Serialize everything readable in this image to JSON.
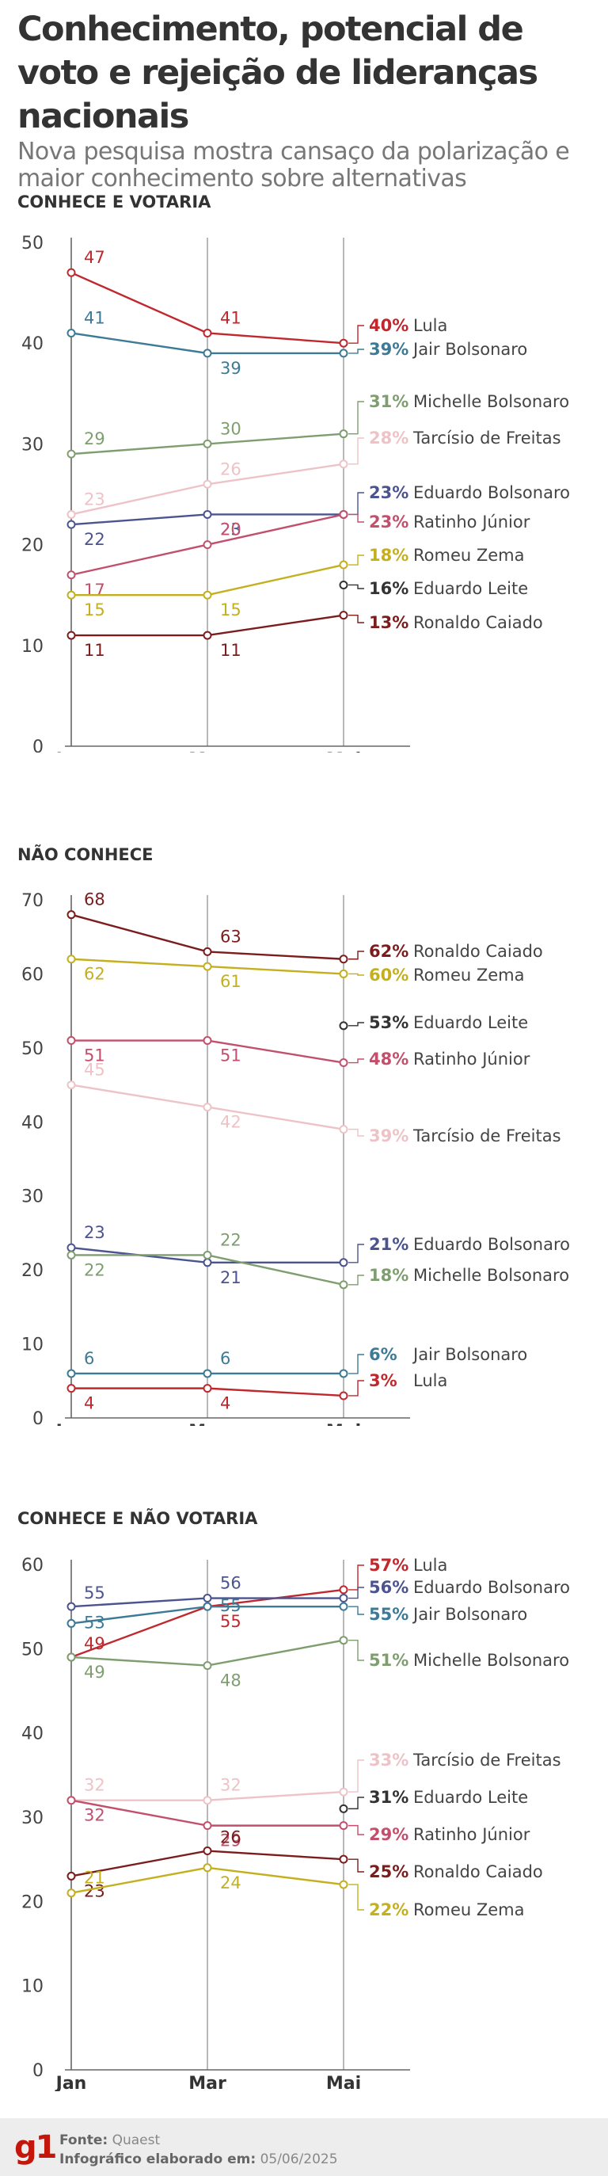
{
  "header": {
    "title": "Conhecimento, potencial de voto e rejeição de lideranças nacionais",
    "subtitle": "Nova pesquisa mostra cansaço da polarização e maior conhecimento sobre alternativas"
  },
  "footer": {
    "logo": "g1",
    "source_label": "Fonte:",
    "source_value": "Quaest",
    "date_label": "Infográfico elaborado em:",
    "date_value": "05/06/2025"
  },
  "colors": {
    "Lula": "#c0282d",
    "Jair Bolsonaro": "#3d7a96",
    "Michelle Bolsonaro": "#7f9e6f",
    "Tarcísio de Freitas": "#eec3c7",
    "Eduardo Bolsonaro": "#4c5490",
    "Ratinho Júnior": "#c24f6c",
    "Romeu Zema": "#c4b01e",
    "Eduardo Leite": "#333333",
    "Ronaldo Caiado": "#7c1d1d"
  },
  "chart_data": [
    {
      "type": "line",
      "title": "CONHECE E VOTARIA",
      "x": [
        "Jan",
        "Mar",
        "Mai"
      ],
      "ylim": [
        0,
        50
      ],
      "yticks": [
        0,
        10,
        20,
        30,
        40,
        50
      ],
      "series": [
        {
          "name": "Lula",
          "values": [
            47,
            41,
            40
          ],
          "end_label": "40%"
        },
        {
          "name": "Jair Bolsonaro",
          "values": [
            41,
            39,
            39
          ],
          "end_label": "39%"
        },
        {
          "name": "Michelle Bolsonaro",
          "values": [
            29,
            30,
            31
          ],
          "end_label": "31%"
        },
        {
          "name": "Tarcísio de Freitas",
          "values": [
            23,
            26,
            28
          ],
          "end_label": "28%"
        },
        {
          "name": "Eduardo Bolsonaro",
          "values": [
            22,
            23,
            23
          ],
          "end_label": "23%"
        },
        {
          "name": "Ratinho Júnior",
          "values": [
            17,
            20,
            23
          ],
          "end_label": "23%"
        },
        {
          "name": "Romeu Zema",
          "values": [
            15,
            15,
            18
          ],
          "end_label": "18%"
        },
        {
          "name": "Eduardo Leite",
          "values": [
            null,
            null,
            16
          ],
          "end_label": "16%"
        },
        {
          "name": "Ronaldo Caiado",
          "values": [
            11,
            11,
            13
          ],
          "end_label": "13%"
        }
      ]
    },
    {
      "type": "line",
      "title": "NÃO CONHECE",
      "x": [
        "Jan",
        "Mar",
        "Mai"
      ],
      "ylim": [
        0,
        70
      ],
      "yticks": [
        0,
        10,
        20,
        30,
        40,
        50,
        60,
        70
      ],
      "series": [
        {
          "name": "Ronaldo Caiado",
          "values": [
            68,
            63,
            62
          ],
          "end_label": "62%"
        },
        {
          "name": "Romeu Zema",
          "values": [
            62,
            61,
            60
          ],
          "end_label": "60%"
        },
        {
          "name": "Eduardo Leite",
          "values": [
            null,
            null,
            53
          ],
          "end_label": "53%"
        },
        {
          "name": "Ratinho Júnior",
          "values": [
            51,
            51,
            48
          ],
          "end_label": "48%"
        },
        {
          "name": "Tarcísio de Freitas",
          "values": [
            45,
            42,
            39
          ],
          "end_label": "39%"
        },
        {
          "name": "Eduardo Bolsonaro",
          "values": [
            23,
            21,
            21
          ],
          "end_label": "21%"
        },
        {
          "name": "Michelle Bolsonaro",
          "values": [
            22,
            22,
            18
          ],
          "end_label": "18%"
        },
        {
          "name": "Jair Bolsonaro",
          "values": [
            6,
            6,
            6
          ],
          "end_label": "6%"
        },
        {
          "name": "Lula",
          "values": [
            4,
            4,
            3
          ],
          "end_label": "3%"
        }
      ]
    },
    {
      "type": "line",
      "title": "CONHECE E NÃO VOTARIA",
      "x": [
        "Jan",
        "Mar",
        "Mai"
      ],
      "ylim": [
        0,
        60
      ],
      "yticks": [
        0,
        10,
        20,
        30,
        40,
        50,
        60
      ],
      "series": [
        {
          "name": "Lula",
          "values": [
            49,
            55,
            57
          ],
          "end_label": "57%"
        },
        {
          "name": "Eduardo Bolsonaro",
          "values": [
            55,
            56,
            56
          ],
          "end_label": "56%"
        },
        {
          "name": "Jair Bolsonaro",
          "values": [
            53,
            55,
            55
          ],
          "end_label": "55%"
        },
        {
          "name": "Michelle Bolsonaro",
          "values": [
            49,
            48,
            51
          ],
          "end_label": "51%"
        },
        {
          "name": "Tarcísio de Freitas",
          "values": [
            32,
            32,
            33
          ],
          "end_label": "33%"
        },
        {
          "name": "Eduardo Leite",
          "values": [
            null,
            null,
            31
          ],
          "end_label": "31%"
        },
        {
          "name": "Ratinho Júnior",
          "values": [
            32,
            29,
            29
          ],
          "end_label": "29%"
        },
        {
          "name": "Ronaldo Caiado",
          "values": [
            23,
            26,
            25
          ],
          "end_label": "25%"
        },
        {
          "name": "Romeu Zema",
          "values": [
            21,
            24,
            22
          ],
          "end_label": "22%"
        }
      ]
    }
  ]
}
